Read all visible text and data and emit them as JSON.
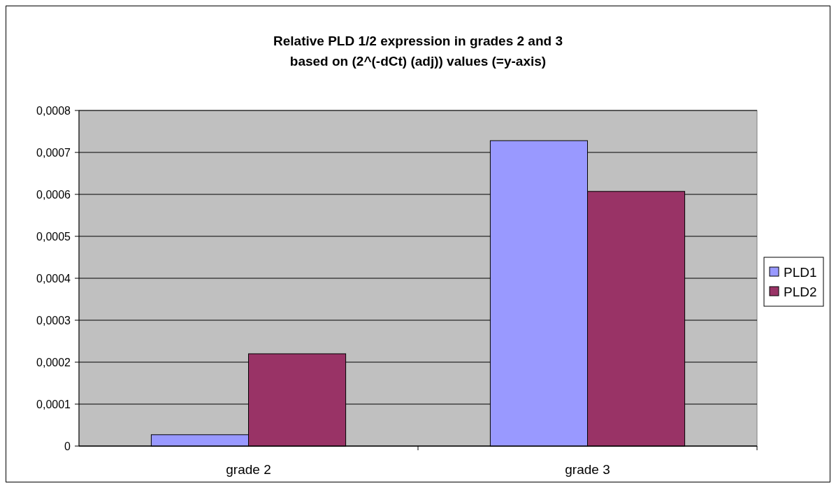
{
  "chart_data": {
    "type": "bar",
    "title": "Relative PLD 1/2 expression in grades 2 and 3\nbased on (2^(-dCt) (adj)) values (=y-axis)",
    "categories": [
      "grade 2",
      "grade 3"
    ],
    "series": [
      {
        "name": "PLD1",
        "color": "#9999ff",
        "values": [
          2.7e-05,
          0.000728
        ]
      },
      {
        "name": "PLD2",
        "color": "#993366",
        "values": [
          0.00022,
          0.000607
        ]
      }
    ],
    "ylim": [
      0,
      0.0008
    ],
    "yticks": [
      {
        "value": 0,
        "label": "0"
      },
      {
        "value": 0.0001,
        "label": "0,0001"
      },
      {
        "value": 0.0002,
        "label": "0,0002"
      },
      {
        "value": 0.0003,
        "label": "0,0003"
      },
      {
        "value": 0.0004,
        "label": "0,0004"
      },
      {
        "value": 0.0005,
        "label": "0,0005"
      },
      {
        "value": 0.0006,
        "label": "0,0006"
      },
      {
        "value": 0.0007,
        "label": "0,0007"
      },
      {
        "value": 0.0008,
        "label": "0,0008"
      }
    ],
    "grid": "y",
    "legend": "right"
  }
}
